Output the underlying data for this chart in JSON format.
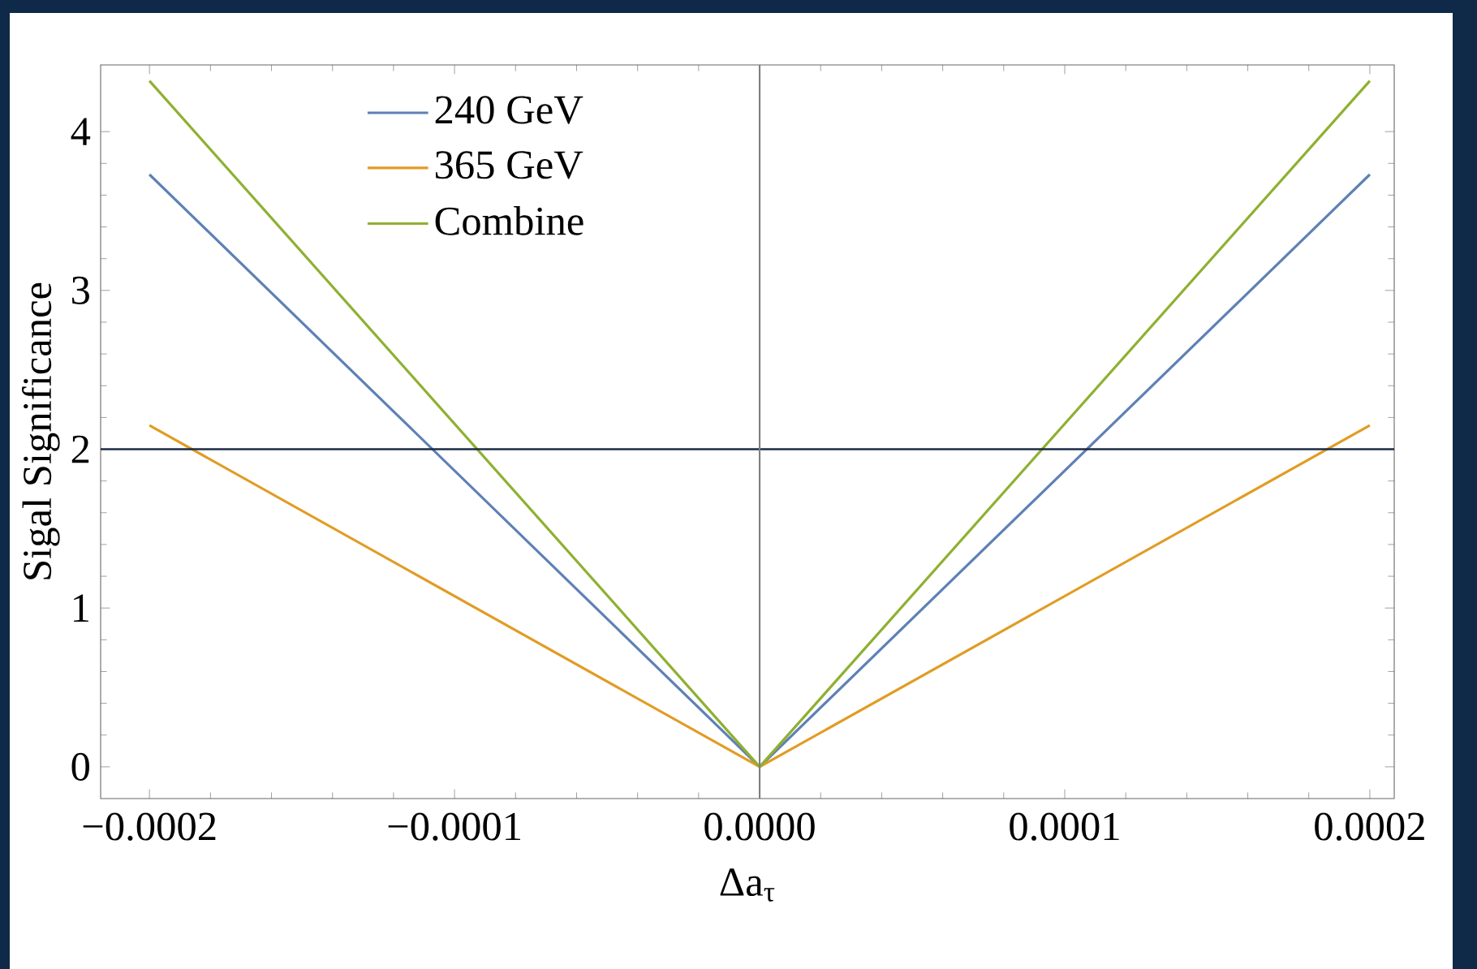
{
  "chart_data": {
    "type": "line",
    "xlabel": "Δa$_{τ}$",
    "ylabel": "Sigal Significance",
    "x": [
      -0.0002,
      0,
      0.0002
    ],
    "series": [
      {
        "name": "240 GeV",
        "color": "#5e81b5",
        "values": [
          3.73,
          0,
          3.73
        ]
      },
      {
        "name": "365 GeV",
        "color": "#e19c24",
        "values": [
          2.15,
          0,
          2.15
        ]
      },
      {
        "name": "Combine",
        "color": "#8fb032",
        "values": [
          4.32,
          0,
          4.32
        ]
      }
    ],
    "xlim": [
      -0.000216,
      0.000208
    ],
    "ylim": [
      -0.2,
      4.42
    ],
    "xticks": [
      {
        "value": -0.0002,
        "label": "−0.0002"
      },
      {
        "value": -0.0001,
        "label": "−0.0001"
      },
      {
        "value": 0,
        "label": "0.0000"
      },
      {
        "value": 0.0001,
        "label": "0.0001"
      },
      {
        "value": 0.0002,
        "label": "0.0002"
      }
    ],
    "yticks": [
      0,
      1,
      2,
      3,
      4
    ],
    "ref_lines": [
      {
        "axis": "y",
        "value": 2,
        "color": "#1b2b45"
      },
      {
        "axis": "x",
        "value": 0,
        "color": "#808080"
      }
    ],
    "legend": "top left"
  }
}
